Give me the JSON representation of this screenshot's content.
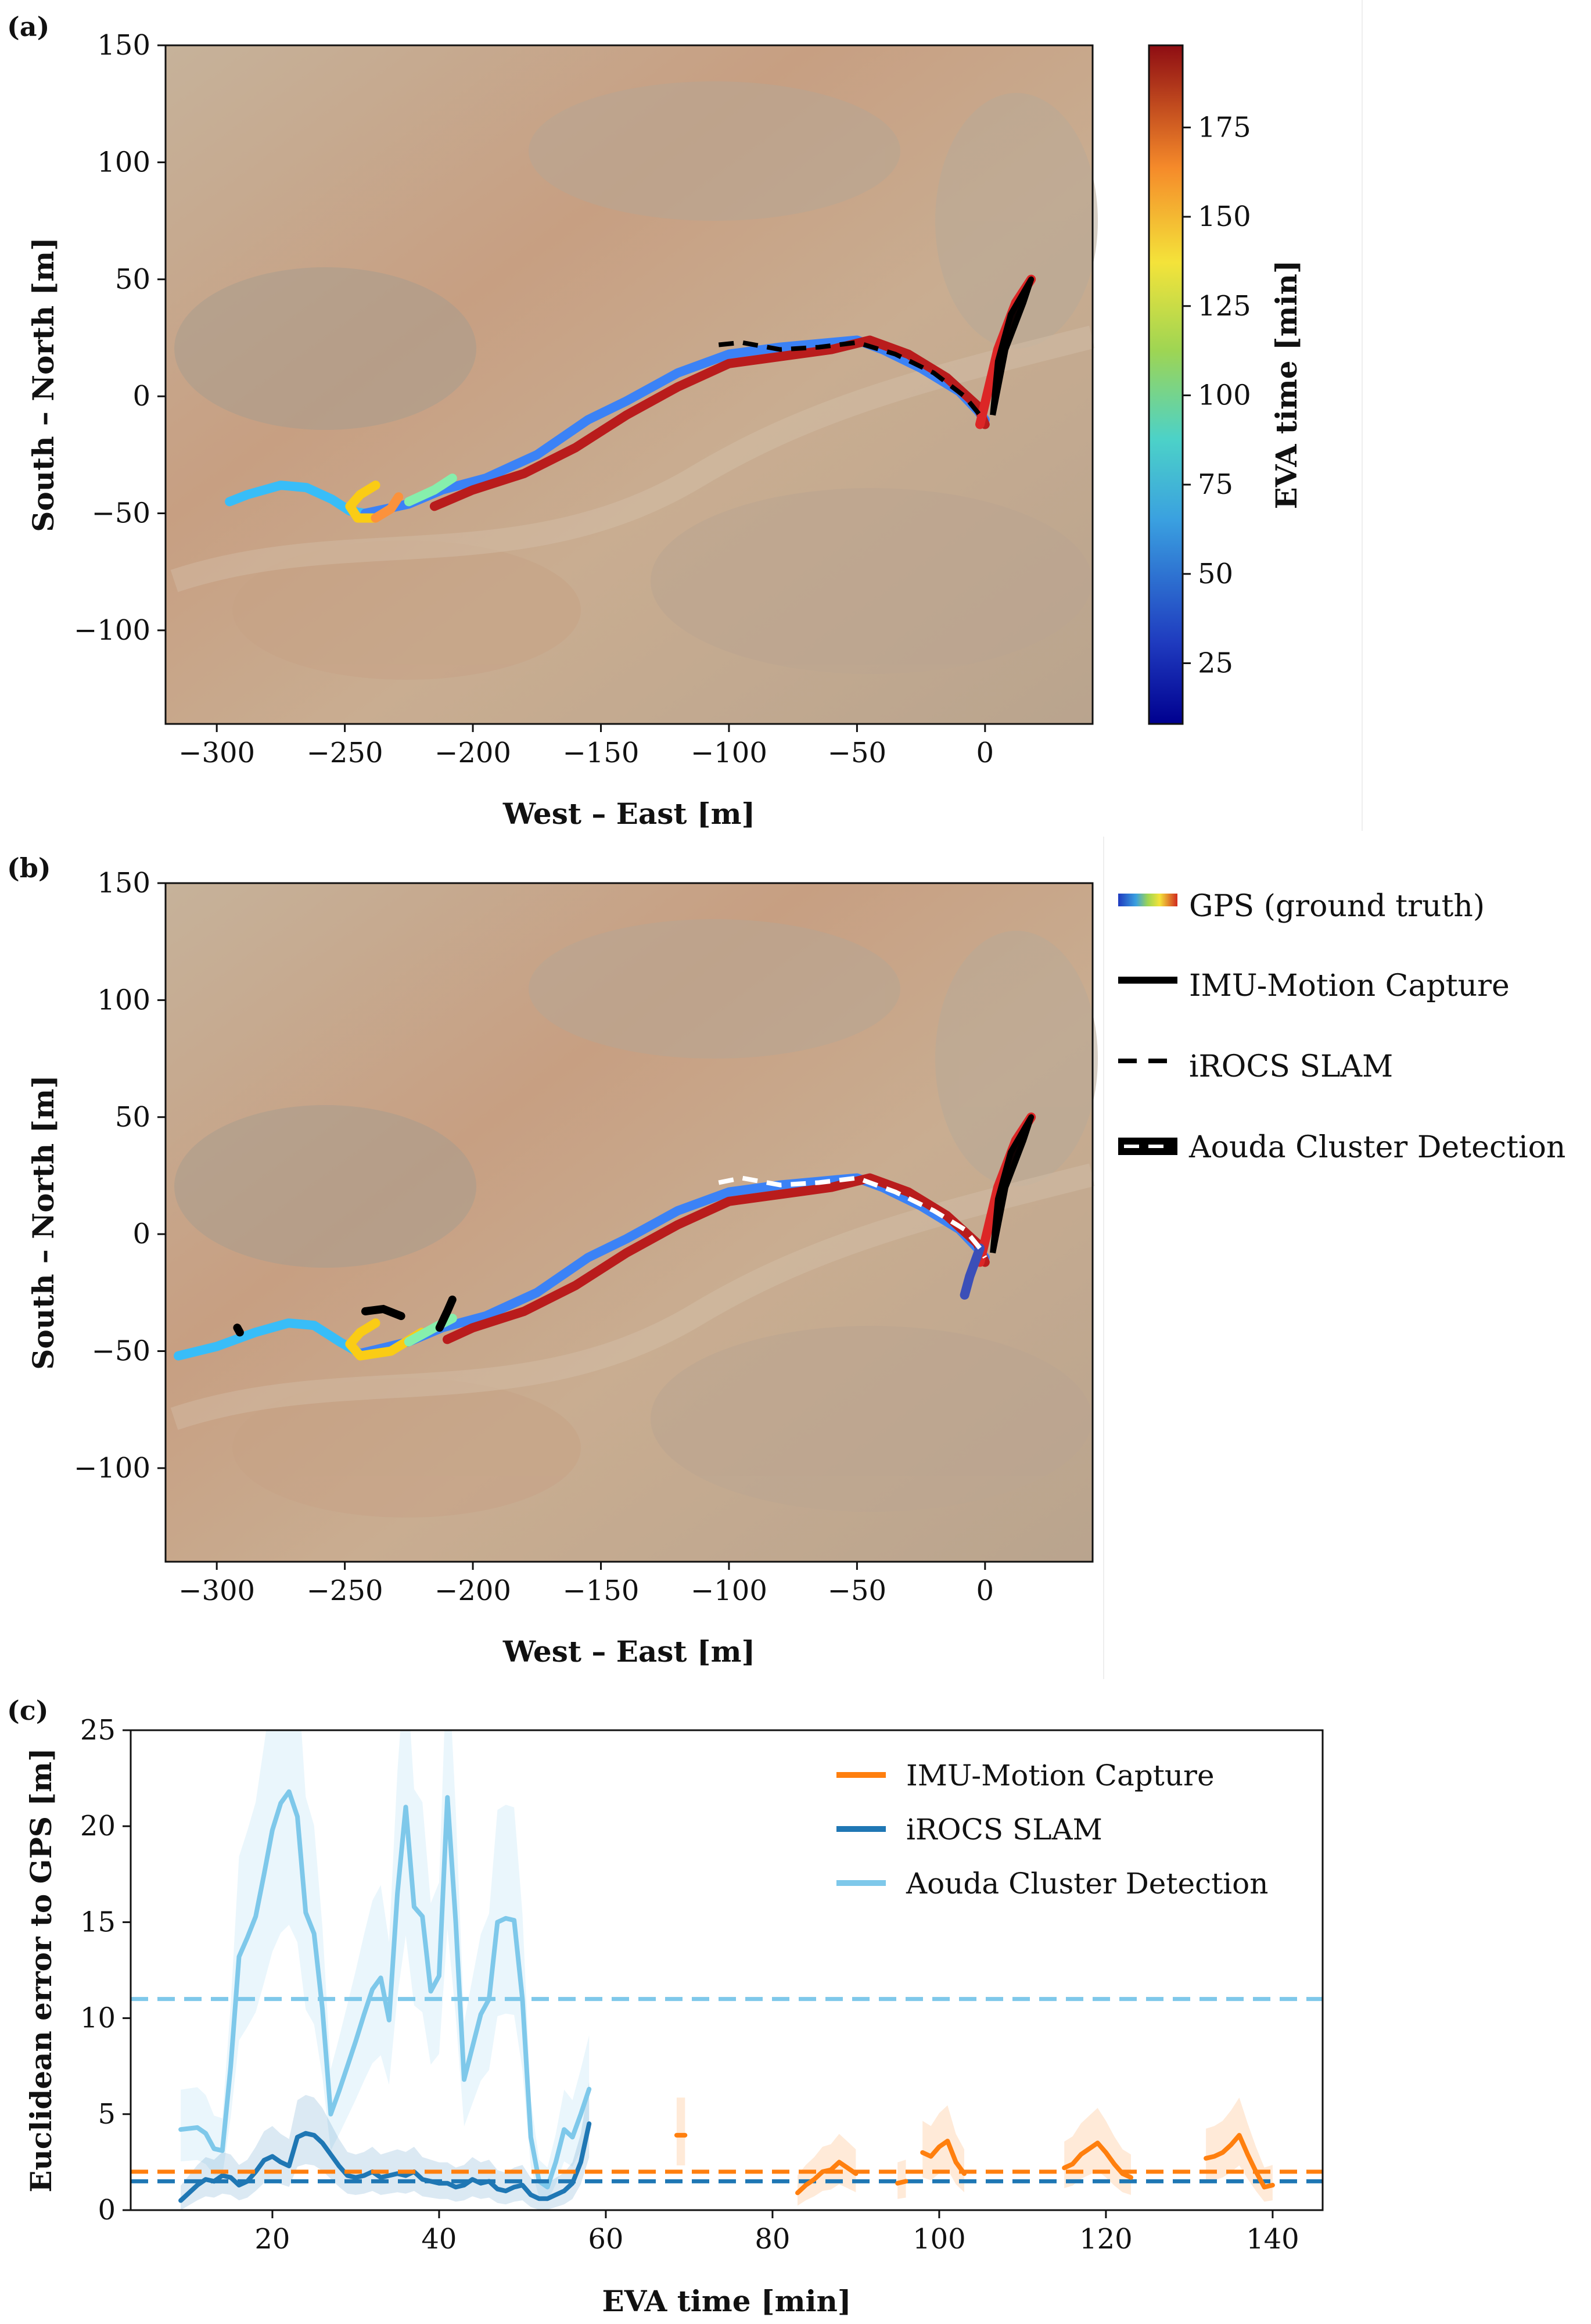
{
  "panels": {
    "a": {
      "label": "(a)"
    },
    "b": {
      "label": "(b)"
    },
    "c": {
      "label": "(c)"
    }
  },
  "chart_data": [
    {
      "id": "a",
      "type": "line",
      "title": "",
      "xlabel": "West – East [m]",
      "ylabel": "South – North [m]",
      "xlim": [
        -320,
        42
      ],
      "ylim": [
        -140,
        150
      ],
      "xticks": [
        -300,
        -250,
        -200,
        -150,
        -100,
        -50,
        0
      ],
      "xtick_labels": [
        "−300",
        "−250",
        "−200",
        "−150",
        "−100",
        "−50",
        "0"
      ],
      "yticks": [
        150,
        100,
        50,
        0,
        -50,
        -100
      ],
      "ytick_labels": [
        "150",
        "100",
        "50",
        "0",
        "−50",
        "−100"
      ],
      "grid": false,
      "background": "satellite imagery",
      "colorbar": {
        "label": "EVA time [min]",
        "range": [
          8,
          198
        ],
        "ticks": [
          25,
          50,
          75,
          100,
          125,
          150,
          175
        ],
        "colormap": "jet"
      },
      "series": [
        {
          "name": "GPS (ground truth)",
          "style": "colored by EVA time",
          "segments": [
            {
              "color": "#38bdf8",
              "x": [
                -295,
                -288,
                -275,
                -265,
                -255,
                -248,
                -242
              ],
              "y": [
                -45,
                -42,
                -38,
                -39,
                -44,
                -49,
                -50
              ]
            },
            {
              "color": "#3b82f6",
              "x": [
                -242,
                -225,
                -212,
                -195,
                -175,
                -155,
                -140,
                -120,
                -100,
                -80,
                -60,
                -50,
                -40,
                -25,
                -10,
                -3,
                0
              ],
              "y": [
                -50,
                -46,
                -40,
                -35,
                -25,
                -10,
                -2,
                10,
                18,
                21,
                23,
                24,
                20,
                12,
                2,
                -6,
                -10
              ]
            },
            {
              "color": "#facc15",
              "x": [
                -238,
                -244,
                -248,
                -245,
                -238
              ],
              "y": [
                -38,
                -42,
                -47,
                -52,
                -52
              ]
            },
            {
              "color": "#fb923c",
              "x": [
                -238,
                -232,
                -229
              ],
              "y": [
                -52,
                -48,
                -43
              ]
            },
            {
              "color": "#86efac",
              "x": [
                -225,
                -215,
                -208
              ],
              "y": [
                -45,
                -40,
                -35
              ]
            },
            {
              "color": "#b91c1c",
              "x": [
                -215,
                -200,
                -180,
                -160,
                -140,
                -120,
                -100,
                -80,
                -60,
                -45,
                -30,
                -15,
                -3,
                0
              ],
              "y": [
                -47,
                -40,
                -33,
                -22,
                -8,
                4,
                14,
                17,
                20,
                24,
                18,
                8,
                -4,
                -12
              ]
            },
            {
              "color": "#dc2626",
              "x": [
                -2,
                5,
                12,
                18
              ],
              "y": [
                -12,
                20,
                40,
                50
              ]
            }
          ]
        },
        {
          "name": "IMU-Motion Capture",
          "color": "#000000",
          "x": [
            3,
            5,
            10,
            18,
            15,
            8,
            3
          ],
          "y": [
            -8,
            15,
            35,
            50,
            40,
            20,
            -8
          ]
        },
        {
          "name": "iROCS SLAM",
          "color": "#000000",
          "dashed": true,
          "x": [
            -104,
            -95,
            -80,
            -65,
            -50,
            -35,
            -20,
            -8,
            -2
          ],
          "y": [
            22,
            23,
            20,
            21,
            23,
            18,
            10,
            0,
            -8
          ]
        }
      ]
    },
    {
      "id": "b",
      "type": "line",
      "title": "",
      "xlabel": "West – East [m]",
      "ylabel": "South – North [m]",
      "xlim": [
        -320,
        42
      ],
      "ylim": [
        -140,
        150
      ],
      "xticks": [
        -300,
        -250,
        -200,
        -150,
        -100,
        -50,
        0
      ],
      "xtick_labels": [
        "−300",
        "−250",
        "−200",
        "−150",
        "−100",
        "−50",
        "0"
      ],
      "yticks": [
        150,
        100,
        50,
        0,
        -50,
        -100
      ],
      "ytick_labels": [
        "150",
        "100",
        "50",
        "0",
        "−50",
        "−100"
      ],
      "grid": false,
      "background": "satellite imagery",
      "legend": {
        "position": "right",
        "entries": [
          "GPS (ground truth)",
          "IMU-Motion Capture",
          "iROCS SLAM",
          "Aouda Cluster Detection"
        ]
      },
      "series": [
        {
          "name": "GPS (ground truth)",
          "style": "colored by EVA time",
          "segments": [
            {
              "color": "#38bdf8",
              "x": [
                -315,
                -300,
                -285,
                -272,
                -262,
                -252,
                -244
              ],
              "y": [
                -52,
                -48,
                -42,
                -38,
                -39,
                -46,
                -51
              ]
            },
            {
              "color": "#3b82f6",
              "x": [
                -244,
                -225,
                -212,
                -195,
                -175,
                -155,
                -140,
                -120,
                -100,
                -80,
                -60,
                -50,
                -40,
                -25,
                -10,
                -3,
                0
              ],
              "y": [
                -51,
                -46,
                -40,
                -35,
                -25,
                -10,
                -2,
                10,
                18,
                21,
                23,
                24,
                20,
                12,
                2,
                -6,
                -10
              ]
            },
            {
              "color": "#facc15",
              "x": [
                -238,
                -244,
                -248,
                -244,
                -232,
                -220
              ],
              "y": [
                -38,
                -42,
                -47,
                -52,
                -50,
                -42
              ]
            },
            {
              "color": "#86efac",
              "x": [
                -225,
                -215,
                -208
              ],
              "y": [
                -46,
                -40,
                -36
              ]
            },
            {
              "color": "#b91c1c",
              "x": [
                -210,
                -200,
                -180,
                -160,
                -140,
                -120,
                -100,
                -80,
                -60,
                -45,
                -30,
                -15,
                -3,
                0
              ],
              "y": [
                -45,
                -40,
                -33,
                -22,
                -8,
                4,
                14,
                17,
                20,
                24,
                18,
                8,
                -4,
                -12
              ]
            },
            {
              "color": "#dc2626",
              "x": [
                -2,
                5,
                12,
                18
              ],
              "y": [
                -12,
                20,
                40,
                50
              ]
            },
            {
              "color": "#3b4fb8",
              "x": [
                -8,
                -6,
                -4,
                -2
              ],
              "y": [
                -26,
                -18,
                -12,
                -6
              ]
            }
          ]
        },
        {
          "name": "IMU-Motion Capture",
          "color": "#000000",
          "x": [
            3,
            5,
            10,
            18,
            15,
            8,
            3
          ],
          "y": [
            -8,
            15,
            35,
            50,
            40,
            20,
            -8
          ]
        },
        {
          "name": "Aouda Cluster Detection",
          "color": "#000000",
          "clusters": [
            {
              "x": [
                -242,
                -235,
                -228
              ],
              "y": [
                -33,
                -32,
                -35
              ]
            },
            {
              "x": [
                -213,
                -210,
                -208
              ],
              "y": [
                -40,
                -33,
                -28
              ]
            },
            {
              "x": [
                -292,
                -291
              ],
              "y": [
                -40,
                -42
              ]
            }
          ]
        },
        {
          "name": "iROCS SLAM",
          "color": "#ffffff",
          "dashed": true,
          "x": [
            -104,
            -95,
            -80,
            -65,
            -50,
            -35,
            -20,
            -8,
            -2,
            0
          ],
          "y": [
            22,
            24,
            21,
            22,
            24,
            18,
            10,
            2,
            -6,
            -10
          ]
        }
      ]
    },
    {
      "id": "c",
      "type": "line",
      "title": "",
      "xlabel": "EVA time [min]",
      "ylabel": "Euclidean error to GPS [m]",
      "xlim": [
        3,
        146
      ],
      "ylim": [
        0,
        25
      ],
      "xticks": [
        20,
        40,
        60,
        80,
        100,
        120,
        140
      ],
      "xtick_labels": [
        "20",
        "40",
        "60",
        "80",
        "100",
        "120",
        "140"
      ],
      "yticks": [
        0,
        5,
        10,
        15,
        20,
        25
      ],
      "ytick_labels": [
        "0",
        "5",
        "10",
        "15",
        "20",
        "25"
      ],
      "grid": false,
      "legend": {
        "position": "top-right",
        "entries": [
          "IMU-Motion Capture",
          "iROCS SLAM",
          "Aouda Cluster Detection"
        ]
      },
      "series": [
        {
          "name": "Aouda Cluster Detection",
          "color": "#7ec8ea",
          "segments": [
            {
              "x": [
                9,
                11,
                12,
                13,
                14,
                15,
                16,
                17,
                18,
                19,
                20,
                21,
                22,
                23,
                24,
                25,
                26,
                27,
                28,
                29,
                30,
                31,
                32,
                33,
                34,
                35,
                36,
                37,
                38,
                39,
                40,
                41,
                42,
                43,
                44,
                45,
                46,
                47,
                48,
                49,
                50,
                51,
                52,
                53,
                54,
                55,
                56,
                57,
                58
              ],
              "y": [
                4.2,
                4.3,
                4.0,
                3.2,
                3.1,
                7.5,
                13.2,
                14.2,
                15.3,
                17.5,
                19.8,
                21.2,
                21.8,
                20.5,
                15.5,
                14.4,
                10.5,
                5.0,
                6.2,
                7.5,
                8.8,
                10.2,
                11.5,
                12.1,
                9.9,
                16.5,
                21.0,
                15.8,
                15.3,
                11.4,
                12.2,
                21.5,
                15.0,
                6.8,
                8.5,
                10.2,
                11.0,
                15.0,
                15.2,
                15.1,
                11.0,
                3.8,
                1.5,
                1.2,
                2.5,
                4.2,
                3.8,
                5.0,
                6.3
              ]
            }
          ]
        },
        {
          "name": "Aouda Cluster Detection (mean)",
          "color": "#7ec8ea",
          "dashed": true,
          "x": [
            3,
            146
          ],
          "y": [
            11.0,
            11.0
          ]
        },
        {
          "name": "iROCS SLAM",
          "color": "#1f77b4",
          "segments": [
            {
              "x": [
                9,
                11,
                12,
                13,
                14,
                15,
                16,
                17,
                18,
                19,
                20,
                21,
                22,
                23,
                24,
                25,
                26,
                27,
                28,
                29,
                30,
                31,
                32,
                33,
                34,
                35,
                36,
                37,
                38,
                39,
                40,
                41,
                42,
                43,
                44,
                45,
                46,
                47,
                48,
                49,
                50,
                51,
                52,
                53,
                54,
                55,
                56,
                57,
                58
              ],
              "y": [
                0.5,
                1.3,
                1.6,
                1.5,
                1.8,
                1.7,
                1.3,
                1.5,
                2.0,
                2.6,
                2.8,
                2.5,
                2.3,
                3.8,
                4.0,
                3.9,
                3.5,
                2.9,
                2.3,
                1.8,
                1.7,
                1.8,
                2.0,
                1.7,
                1.8,
                1.9,
                1.8,
                2.0,
                1.6,
                1.5,
                1.4,
                1.4,
                1.2,
                1.3,
                1.6,
                1.4,
                1.5,
                1.1,
                1.0,
                1.2,
                1.3,
                0.8,
                0.6,
                0.6,
                0.8,
                1.0,
                1.4,
                2.5,
                4.5
              ]
            }
          ]
        },
        {
          "name": "iROCS SLAM (mean)",
          "color": "#1f77b4",
          "dashed": true,
          "x": [
            3,
            146
          ],
          "y": [
            1.5,
            1.5
          ]
        },
        {
          "name": "IMU-Motion Capture",
          "color": "#ff7f0e",
          "segments": [
            {
              "x": [
                68.5,
                69.5
              ],
              "y": [
                3.9,
                3.9
              ]
            },
            {
              "x": [
                83,
                84,
                85,
                86,
                87,
                88,
                89,
                90
              ],
              "y": [
                0.9,
                1.3,
                1.6,
                2.0,
                2.1,
                2.5,
                2.2,
                1.9
              ]
            },
            {
              "x": [
                95,
                96
              ],
              "y": [
                1.4,
                1.5
              ]
            },
            {
              "x": [
                98,
                99,
                100,
                101,
                102,
                103
              ],
              "y": [
                3.0,
                2.8,
                3.3,
                3.6,
                2.5,
                1.9
              ]
            },
            {
              "x": [
                115,
                116,
                117,
                118,
                119,
                120,
                121,
                122,
                123
              ],
              "y": [
                2.2,
                2.4,
                2.9,
                3.2,
                3.5,
                3.0,
                2.4,
                1.9,
                1.7
              ]
            },
            {
              "x": [
                132,
                133,
                134,
                135,
                136,
                137,
                138,
                139,
                140
              ],
              "y": [
                2.7,
                2.8,
                3.0,
                3.4,
                3.9,
                2.9,
                2.0,
                1.2,
                1.3
              ]
            }
          ]
        },
        {
          "name": "IMU-Motion Capture (mean)",
          "color": "#ff7f0e",
          "dashed": true,
          "x": [
            3,
            146
          ],
          "y": [
            2.0,
            2.0
          ]
        }
      ]
    }
  ]
}
